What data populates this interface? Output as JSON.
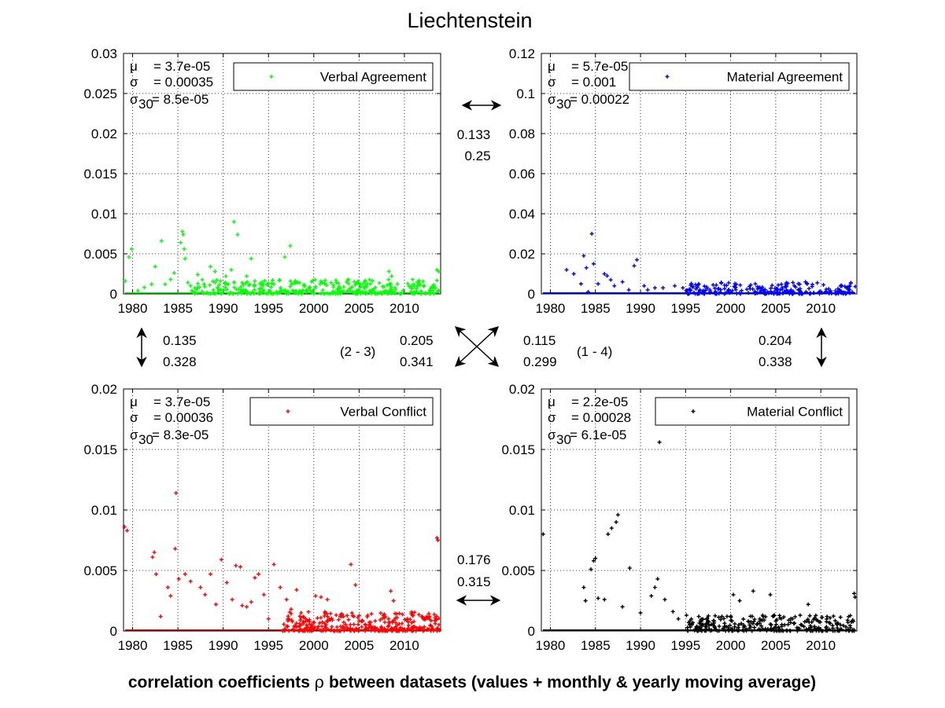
{
  "figure": {
    "title": "Liechtenstein",
    "footer_prefix": "correlation coefficients ",
    "footer_symbol": "ρ",
    "footer_suffix": " between datasets (values + monthly & yearly moving average)"
  },
  "chart_data": [
    {
      "type": "scatter",
      "panel": "top-left",
      "legend": "Verbal Agreement",
      "color": "#00ff00",
      "xlim": [
        1979,
        2014
      ],
      "ylim": [
        0,
        0.03
      ],
      "xticks": [
        "1980",
        "1985",
        "1990",
        "1995",
        "2000",
        "2005",
        "2010"
      ],
      "yticks": [
        "0",
        "0.005",
        "0.01",
        "0.015",
        "0.02",
        "0.025",
        "0.03"
      ],
      "grid": true,
      "legend_position": "top-right",
      "stats": {
        "mu": "= 3.7e-05",
        "sigma": "= 0.00035",
        "sigma30": "= 8.5e-05"
      },
      "highlights": [
        [
          1979.2,
          0.0016
        ],
        [
          1979.6,
          0.0046
        ],
        [
          1979.9,
          0.0056
        ],
        [
          1980.6,
          0.0004
        ],
        [
          1981.3,
          0.0008
        ],
        [
          1982.1,
          0.0012
        ],
        [
          1982.5,
          0.0034
        ],
        [
          1983.2,
          0.0066
        ],
        [
          1983.6,
          0.0012
        ],
        [
          1984.2,
          0.0018
        ],
        [
          1984.6,
          0.0026
        ],
        [
          1985.3,
          0.0064
        ],
        [
          1985.5,
          0.0078
        ],
        [
          1985.6,
          0.0074
        ],
        [
          1985.7,
          0.0056
        ],
        [
          1985.8,
          0.0044
        ],
        [
          1986.1,
          0.0014
        ],
        [
          1986.4,
          0.001
        ],
        [
          1987.2,
          0.0024
        ],
        [
          1987.9,
          0.0012
        ],
        [
          1988.6,
          0.0034
        ],
        [
          1989.1,
          0.0028
        ],
        [
          1989.7,
          0.0016
        ],
        [
          1990.3,
          0.0022
        ],
        [
          1990.9,
          0.003
        ],
        [
          1991.2,
          0.009
        ],
        [
          1991.6,
          0.0074
        ],
        [
          1992.1,
          0.0014
        ],
        [
          1992.6,
          0.0022
        ],
        [
          1993.1,
          0.0044
        ],
        [
          1993.5,
          0.0016
        ],
        [
          1994.4,
          0.001
        ],
        [
          1995.6,
          0.0012
        ],
        [
          1996.8,
          0.0046
        ],
        [
          1997.4,
          0.006
        ],
        [
          1998.1,
          0.0014
        ],
        [
          1998.9,
          0.001
        ],
        [
          2008.3,
          0.0028
        ],
        [
          2008.6,
          0.0022
        ],
        [
          2013.6,
          0.003
        ],
        [
          2013.8,
          0.0028
        ]
      ],
      "cloud": {
        "x_start": 1986.5,
        "x_end": 2013.9,
        "count": 360,
        "y_max": 0.0018
      }
    },
    {
      "type": "scatter",
      "panel": "top-right",
      "legend": "Material Agreement",
      "color": "#0000ff",
      "xlim": [
        1979,
        2014
      ],
      "ylim": [
        0,
        0.12
      ],
      "xticks": [
        "1980",
        "1985",
        "1990",
        "1995",
        "2000",
        "2005",
        "2010"
      ],
      "yticks": [
        "0",
        "0.02",
        "0.04",
        "0.06",
        "0.08",
        "0.1",
        "0.12"
      ],
      "grid": true,
      "legend_position": "top-right",
      "stats": {
        "mu": "= 5.7e-05",
        "sigma": "= 0.001",
        "sigma30": "= 0.00022"
      },
      "highlights": [
        [
          1981.8,
          0.012
        ],
        [
          1982.6,
          0.01
        ],
        [
          1983.4,
          0.005
        ],
        [
          1983.7,
          0.019
        ],
        [
          1984.0,
          0.013
        ],
        [
          1984.2,
          0.001
        ],
        [
          1984.6,
          0.03
        ],
        [
          1984.8,
          0.015
        ],
        [
          1985.3,
          0.005
        ],
        [
          1986.0,
          0.01
        ],
        [
          1986.3,
          0.009
        ],
        [
          1986.7,
          0.007
        ],
        [
          1987.1,
          0.004
        ],
        [
          1988.0,
          0.006
        ],
        [
          1988.7,
          0.002
        ],
        [
          1989.3,
          0.014
        ],
        [
          1989.6,
          0.017
        ],
        [
          1990.4,
          0.004
        ],
        [
          1990.8,
          0.002
        ],
        [
          1991.6,
          0.003
        ],
        [
          1992.5,
          0.003
        ],
        [
          1993.8,
          0.004
        ],
        [
          1994.7,
          0.003
        ],
        [
          2008.3,
          0.006
        ],
        [
          2008.5,
          0.005
        ]
      ],
      "cloud": {
        "x_start": 1995.0,
        "x_end": 2013.9,
        "count": 240,
        "y_max": 0.006
      }
    },
    {
      "type": "scatter",
      "panel": "bottom-left",
      "legend": "Verbal Conflict",
      "color": "#ff0000",
      "xlim": [
        1979,
        2014
      ],
      "ylim": [
        0,
        0.02
      ],
      "xticks": [
        "1980",
        "1985",
        "1990",
        "1995",
        "2000",
        "2005",
        "2010"
      ],
      "yticks": [
        "0",
        "0.005",
        "0.01",
        "0.015",
        "0.02"
      ],
      "grid": true,
      "legend_position": "top-right",
      "stats": {
        "mu": "= 3.7e-05",
        "sigma": "= 0.00036",
        "sigma30": "= 8.3e-05"
      },
      "highlights": [
        [
          1979.1,
          0.0086
        ],
        [
          1979.4,
          0.0083
        ],
        [
          1982.2,
          0.0061
        ],
        [
          1982.4,
          0.0065
        ],
        [
          1982.6,
          0.0047
        ],
        [
          1983.1,
          0.0012
        ],
        [
          1983.9,
          0.0036
        ],
        [
          1984.2,
          0.0029
        ],
        [
          1984.7,
          0.0068
        ],
        [
          1984.8,
          0.0114
        ],
        [
          1985.1,
          0.0043
        ],
        [
          1985.8,
          0.0047
        ],
        [
          1986.4,
          0.0041
        ],
        [
          1987.5,
          0.0036
        ],
        [
          1988.0,
          0.003
        ],
        [
          1988.6,
          0.0047
        ],
        [
          1989.2,
          0.0022
        ],
        [
          1989.8,
          0.0059
        ],
        [
          1990.4,
          0.004
        ],
        [
          1991.0,
          0.0026
        ],
        [
          1991.4,
          0.0054
        ],
        [
          1991.9,
          0.0053
        ],
        [
          1992.1,
          0.0021
        ],
        [
          1992.6,
          0.002
        ],
        [
          1993.1,
          0.0024
        ],
        [
          1993.5,
          0.0044
        ],
        [
          1993.9,
          0.0047
        ],
        [
          1994.5,
          0.003
        ],
        [
          1995.0,
          0.001
        ],
        [
          1995.6,
          0.0055
        ],
        [
          1996.3,
          0.0036
        ],
        [
          1997.0,
          0.0026
        ],
        [
          1997.5,
          0.0018
        ],
        [
          1998.1,
          0.0034
        ],
        [
          1998.6,
          0.0015
        ],
        [
          2000.2,
          0.0029
        ],
        [
          2000.8,
          0.0028
        ],
        [
          2001.5,
          0.0026
        ],
        [
          2003.1,
          0.0012
        ],
        [
          2004.1,
          0.0055
        ],
        [
          2004.6,
          0.0038
        ],
        [
          2008.5,
          0.0033
        ],
        [
          2008.8,
          0.0025
        ],
        [
          2013.6,
          0.0077
        ],
        [
          2013.7,
          0.0075
        ]
      ],
      "cloud": {
        "x_start": 1996.5,
        "x_end": 2013.9,
        "count": 330,
        "y_max": 0.0016
      }
    },
    {
      "type": "scatter",
      "panel": "bottom-right",
      "legend": "Material Conflict",
      "color": "#000000",
      "xlim": [
        1979,
        2014
      ],
      "ylim": [
        0,
        0.02
      ],
      "xticks": [
        "1980",
        "1985",
        "1990",
        "1995",
        "2000",
        "2005",
        "2010"
      ],
      "yticks": [
        "0",
        "0.005",
        "0.01",
        "0.015",
        "0.02"
      ],
      "grid": true,
      "legend_position": "top-right",
      "stats": {
        "mu": "= 2.2e-05",
        "sigma": "= 0.00028",
        "sigma30": "= 6.1e-05"
      },
      "highlights": [
        [
          1979.2,
          0.008
        ],
        [
          1983.7,
          0.0036
        ],
        [
          1983.9,
          0.0025
        ],
        [
          1984.5,
          0.0051
        ],
        [
          1984.8,
          0.0058
        ],
        [
          1985.0,
          0.006
        ],
        [
          1985.3,
          0.0027
        ],
        [
          1986.0,
          0.0026
        ],
        [
          1986.4,
          0.008
        ],
        [
          1986.8,
          0.0085
        ],
        [
          1987.3,
          0.009
        ],
        [
          1987.5,
          0.0096
        ],
        [
          1988.0,
          0.002
        ],
        [
          1988.8,
          0.0052
        ],
        [
          1990.0,
          0.0015
        ],
        [
          1991.2,
          0.0029
        ],
        [
          1991.6,
          0.0036
        ],
        [
          1991.9,
          0.0043
        ],
        [
          1992.1,
          0.0156
        ],
        [
          1992.7,
          0.0026
        ],
        [
          1993.6,
          0.0016
        ],
        [
          1994.2,
          0.001
        ],
        [
          1995.1,
          0.0013
        ],
        [
          2000.3,
          0.003
        ],
        [
          2001.0,
          0.0025
        ],
        [
          2002.5,
          0.0033
        ],
        [
          2004.4,
          0.003
        ],
        [
          2008.6,
          0.0022
        ],
        [
          2013.7,
          0.0031
        ],
        [
          2013.8,
          0.0028
        ]
      ],
      "cloud": {
        "x_start": 1995.2,
        "x_end": 2013.9,
        "count": 280,
        "y_max": 0.0013
      }
    }
  ],
  "correlations": {
    "top": {
      "a": "0.133",
      "b": "0.25"
    },
    "left": {
      "a": "0.135",
      "b": "0.328"
    },
    "right": {
      "a": "0.204",
      "b": "0.338"
    },
    "diag_left": {
      "label": "(2 - 3)",
      "a": "0.205",
      "b": "0.341"
    },
    "diag_right": {
      "label": "(1 - 4)",
      "a": "0.115",
      "b": "0.299"
    },
    "bottom": {
      "a": "0.176",
      "b": "0.315"
    }
  }
}
